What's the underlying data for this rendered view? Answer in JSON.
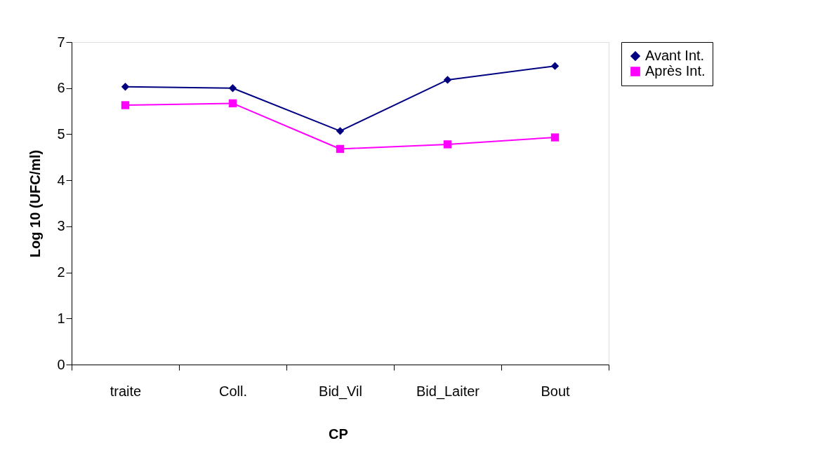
{
  "chart_data": {
    "type": "line",
    "ylabel": "Log 10 (UFC/ml)",
    "categories": [
      "traite",
      "Coll.",
      "Bid_Vil",
      "Bid_Laiter",
      "Bout"
    ],
    "series": [
      {
        "name": "Avant Int.",
        "color": "#000080",
        "marker": "diamond",
        "values": [
          6.03,
          6.0,
          5.07,
          6.18,
          6.48
        ]
      },
      {
        "name": "Après Int.",
        "color": "#ff00ff",
        "marker": "square",
        "values": [
          5.63,
          5.67,
          4.68,
          4.78,
          4.93
        ]
      }
    ],
    "ylim": [
      0,
      7
    ],
    "yticks": [
      0,
      1,
      2,
      3,
      4,
      5,
      6,
      7
    ],
    "grid": false,
    "legend": "right",
    "annotations": [
      "CP"
    ]
  }
}
